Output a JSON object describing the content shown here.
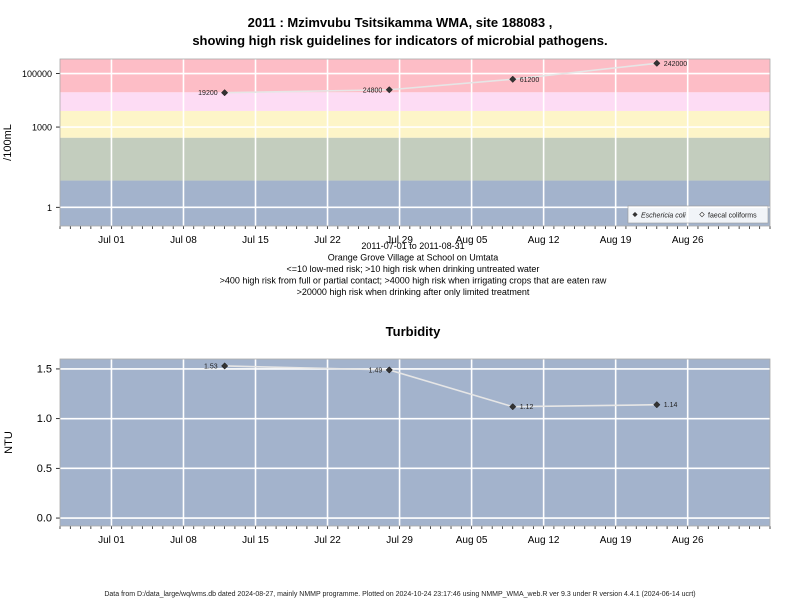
{
  "chart_data": [
    {
      "type": "line",
      "title_line1": "2011 : Mzimvubu Tsitsikamma WMA, site 188083 ,",
      "title_line2": "showing high risk guidelines for indicators of microbial pathogens.",
      "ylabel": "/100mL",
      "yscale": "log",
      "ylim": [
        0.2,
        350000
      ],
      "y_ticks": [
        {
          "value": 1,
          "label": "1"
        },
        {
          "value": 1000,
          "label": "1000"
        },
        {
          "value": 100000,
          "label": "100000"
        }
      ],
      "x_range": [
        "2011-06-26",
        "2011-09-03"
      ],
      "x_ticks": [
        {
          "date": "2011-07-01",
          "label": "Jul 01"
        },
        {
          "date": "2011-07-08",
          "label": "Jul 08"
        },
        {
          "date": "2011-07-15",
          "label": "Jul 15"
        },
        {
          "date": "2011-07-22",
          "label": "Jul 22"
        },
        {
          "date": "2011-07-29",
          "label": "Jul 29"
        },
        {
          "date": "2011-08-05",
          "label": "Aug 05"
        },
        {
          "date": "2011-08-12",
          "label": "Aug 12"
        },
        {
          "date": "2011-08-19",
          "label": "Aug 19"
        },
        {
          "date": "2011-08-26",
          "label": "Aug 26"
        }
      ],
      "bands": [
        {
          "from": 0.2,
          "to": 10,
          "color": "#a3b3cc"
        },
        {
          "from": 10,
          "to": 400,
          "color": "#c3cdbe"
        },
        {
          "from": 400,
          "to": 4000,
          "color": "#fdf5c8"
        },
        {
          "from": 4000,
          "to": 20000,
          "color": "#fddcf4"
        },
        {
          "from": 20000,
          "to": 350000,
          "color": "#fdbdc6"
        }
      ],
      "series": [
        {
          "name": "Eschericia coli",
          "marker": "filled-diamond",
          "points": [
            {
              "date": "2011-07-12",
              "value": 19200,
              "label": "19200"
            },
            {
              "date": "2011-07-28",
              "value": 24800,
              "label": "24800"
            },
            {
              "date": "2011-08-09",
              "value": 61200,
              "label": "61200"
            },
            {
              "date": "2011-08-23",
              "value": 242000,
              "label": "242000"
            }
          ]
        }
      ],
      "legend": {
        "position": "bottom-right",
        "items": [
          {
            "label": "Eschericia coli",
            "marker": "filled-diamond"
          },
          {
            "label": "faecal coliforms",
            "marker": "open-diamond"
          }
        ]
      },
      "caption": [
        "2011-07-01 to 2011-08-31",
        "Orange Grove Village at School on Umtata",
        "<=10 low-med risk; >10 high risk when drinking untreated water",
        ">400 high risk from full or partial contact; >4000 high risk when irrigating crops that are eaten raw",
        ">20000 high risk when drinking after only limited treatment"
      ]
    },
    {
      "type": "line",
      "title": "Turbidity",
      "ylabel": "NTU",
      "ylim": [
        -0.08,
        1.6
      ],
      "y_ticks": [
        {
          "value": 0.0,
          "label": "0.0"
        },
        {
          "value": 0.5,
          "label": "0.5"
        },
        {
          "value": 1.0,
          "label": "1.0"
        },
        {
          "value": 1.5,
          "label": "1.5"
        }
      ],
      "x_range": [
        "2011-06-26",
        "2011-09-03"
      ],
      "x_ticks": [
        {
          "date": "2011-07-01",
          "label": "Jul 01"
        },
        {
          "date": "2011-07-08",
          "label": "Jul 08"
        },
        {
          "date": "2011-07-15",
          "label": "Jul 15"
        },
        {
          "date": "2011-07-22",
          "label": "Jul 22"
        },
        {
          "date": "2011-07-29",
          "label": "Jul 29"
        },
        {
          "date": "2011-08-05",
          "label": "Aug 05"
        },
        {
          "date": "2011-08-12",
          "label": "Aug 12"
        },
        {
          "date": "2011-08-19",
          "label": "Aug 19"
        },
        {
          "date": "2011-08-26",
          "label": "Aug 26"
        }
      ],
      "background": "#a3b3cc",
      "series": [
        {
          "marker": "filled-diamond",
          "points": [
            {
              "date": "2011-07-12",
              "value": 1.53,
              "label": "1.53"
            },
            {
              "date": "2011-07-28",
              "value": 1.49,
              "label": "1.49"
            },
            {
              "date": "2011-08-09",
              "value": 1.12,
              "label": "1.12"
            },
            {
              "date": "2011-08-23",
              "value": 1.14,
              "label": "1.14"
            }
          ]
        }
      ]
    }
  ],
  "footer": "Data from D:/data_large/wq/wms.db dated 2024-08-27, mainly NMMP programme. Plotted on 2024-10-24 23:17:46 using NMMP_WMA_web.R ver 9.3 under R version 4.4.1 (2024-06-14 ucrt)"
}
